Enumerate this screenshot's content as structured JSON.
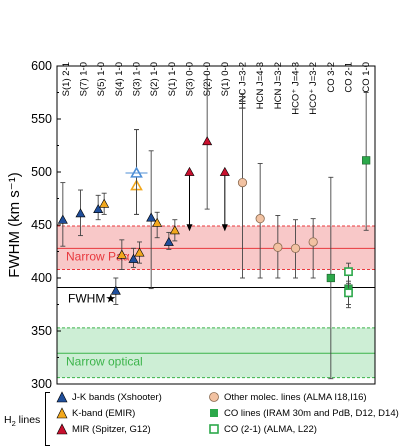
{
  "chart_data": {
    "type": "scatter",
    "ylabel": "FWHM (km s⁻¹)",
    "ylim": [
      300,
      600
    ],
    "yticks": [
      300,
      350,
      400,
      450,
      500,
      550,
      600
    ],
    "columns": [
      "S(1) 2-1",
      "S(7) 1-0",
      "S(5) 1-0",
      "S(4) 1-0",
      "S(3) 1-0",
      "S(2) 1-0",
      "S(1) 1-0",
      "S(3) 0-0",
      "S(2) 0-0",
      "S(1) 0-0",
      "HNC J=3-2",
      "HCN J=4-3",
      "HCN J=3-2",
      "HCO⁺ J=4-3",
      "HCO⁺ J=3-2",
      "CO 3-2",
      "CO 2-1",
      "CO 1-0"
    ],
    "bands": [
      {
        "label": "Narrow Paα",
        "center": 428,
        "low": 408,
        "high": 449,
        "color": "#e8383d",
        "fill": "#f8c8c8"
      },
      {
        "label": "Narrow optical",
        "center": 329,
        "low": 306,
        "high": 353,
        "color": "#3cb44b",
        "fill": "#cdeed5"
      }
    ],
    "fwhm_star": {
      "label": "FWHM★",
      "value": 391
    },
    "series": [
      {
        "name": "J-K bands (Xshooter)",
        "color": "#1f4e9a",
        "marker": "triangle-filled",
        "points": [
          {
            "col": 0,
            "y": 455,
            "lo": 430,
            "hi": 490
          },
          {
            "col": 1,
            "y": 461,
            "lo": 440,
            "hi": 483
          },
          {
            "col": 2,
            "y": 465,
            "lo": 455,
            "hi": 478
          },
          {
            "col": 3,
            "y": 388,
            "lo": 375,
            "hi": 400
          },
          {
            "col": 4,
            "y": 418,
            "lo": 410,
            "hi": 428
          },
          {
            "col": 5,
            "y": 457,
            "lo": 390,
            "hi": 520
          },
          {
            "col": 6,
            "y": 434,
            "lo": 427,
            "hi": 443
          }
        ]
      },
      {
        "name": "K-band (EMIR)",
        "color": "#f2a81d",
        "marker": "triangle-filled",
        "points": [
          {
            "col": 2,
            "y": 470,
            "lo": 460,
            "hi": 480
          },
          {
            "col": 3,
            "y": 422,
            "lo": 408,
            "hi": 436
          },
          {
            "col": 4,
            "y": 424,
            "lo": 414,
            "hi": 434
          },
          {
            "col": 5,
            "y": 452,
            "lo": 438,
            "hi": 462
          },
          {
            "col": 6,
            "y": 445,
            "lo": 435,
            "hi": 455
          }
        ]
      },
      {
        "name": "K-band (EMIR) [open]",
        "color": "#f2a81d",
        "marker": "triangle-open",
        "points": [
          {
            "col": 4,
            "y": 487,
            "lo": 460,
            "hi": 540
          }
        ]
      },
      {
        "name": "J-K bands (Xshooter) [open]",
        "color": "#4f8fd6",
        "marker": "triangle-open",
        "points": [
          {
            "col": 4,
            "y": 499,
            "lo": 460,
            "hi": 540
          }
        ]
      },
      {
        "name": "MIR (Spitzer, G12)",
        "color": "#c8102e",
        "marker": "triangle-filled",
        "points": [
          {
            "col": 7,
            "y": 500,
            "upper": 445
          },
          {
            "col": 8,
            "y": 529,
            "lo": 465,
            "hi": 592
          },
          {
            "col": 9,
            "y": 500,
            "upper": 445
          }
        ]
      },
      {
        "name": "Other molec. lines (ALMA I18,I16)",
        "color": "#f2c2a2",
        "edge": "#8a6a50",
        "marker": "circle",
        "points": [
          {
            "col": 10,
            "y": 490,
            "lo": 400,
            "hi": 574
          },
          {
            "col": 11,
            "y": 456,
            "lo": 400,
            "hi": 508
          },
          {
            "col": 12,
            "y": 429,
            "lo": 400,
            "hi": 459
          },
          {
            "col": 13,
            "y": 428,
            "lo": 400,
            "hi": 455
          },
          {
            "col": 14,
            "y": 434,
            "lo": 400,
            "hi": 456
          }
        ]
      },
      {
        "name": "CO lines (IRAM 30m and PdB, D12, D14)",
        "color": "#2ca84a",
        "marker": "square-filled",
        "points": [
          {
            "col": 15,
            "y": 400,
            "lo": 305,
            "hi": 495
          },
          {
            "col": 16,
            "y": 390,
            "lo": 372,
            "hi": 408
          },
          {
            "col": 17,
            "y": 511,
            "lo": 445,
            "hi": 575
          }
        ]
      },
      {
        "name": "CO (2-1) (ALMA, L22)",
        "color": "#2ca84a",
        "marker": "square-open",
        "points": [
          {
            "col": 16,
            "y": 406,
            "lo": 395,
            "hi": 414
          },
          {
            "col": 16,
            "y": 386,
            "lo": 375,
            "hi": 397
          }
        ]
      }
    ]
  },
  "legend": {
    "title_main": "H",
    "title_sub": "2",
    "title_rest": " lines",
    "items": [
      {
        "label": "J-K bands (Xshooter)",
        "icon": "triangle-filled-icon",
        "color": "#1f4e9a"
      },
      {
        "label": "K-band (EMIR)",
        "icon": "triangle-filled-icon",
        "color": "#f2a81d"
      },
      {
        "label": "MIR (Spitzer, G12)",
        "icon": "triangle-filled-icon",
        "color": "#c8102e"
      },
      {
        "label": "Other molec. lines (ALMA I18,I16)",
        "icon": "circle-icon",
        "color": "#f2c2a2"
      },
      {
        "label": "CO lines (IRAM 30m and PdB, D12, D14)",
        "icon": "square-filled-icon",
        "color": "#2ca84a"
      },
      {
        "label": "CO (2-1) (ALMA, L22)",
        "icon": "square-open-icon",
        "color": "#2ca84a"
      }
    ]
  }
}
